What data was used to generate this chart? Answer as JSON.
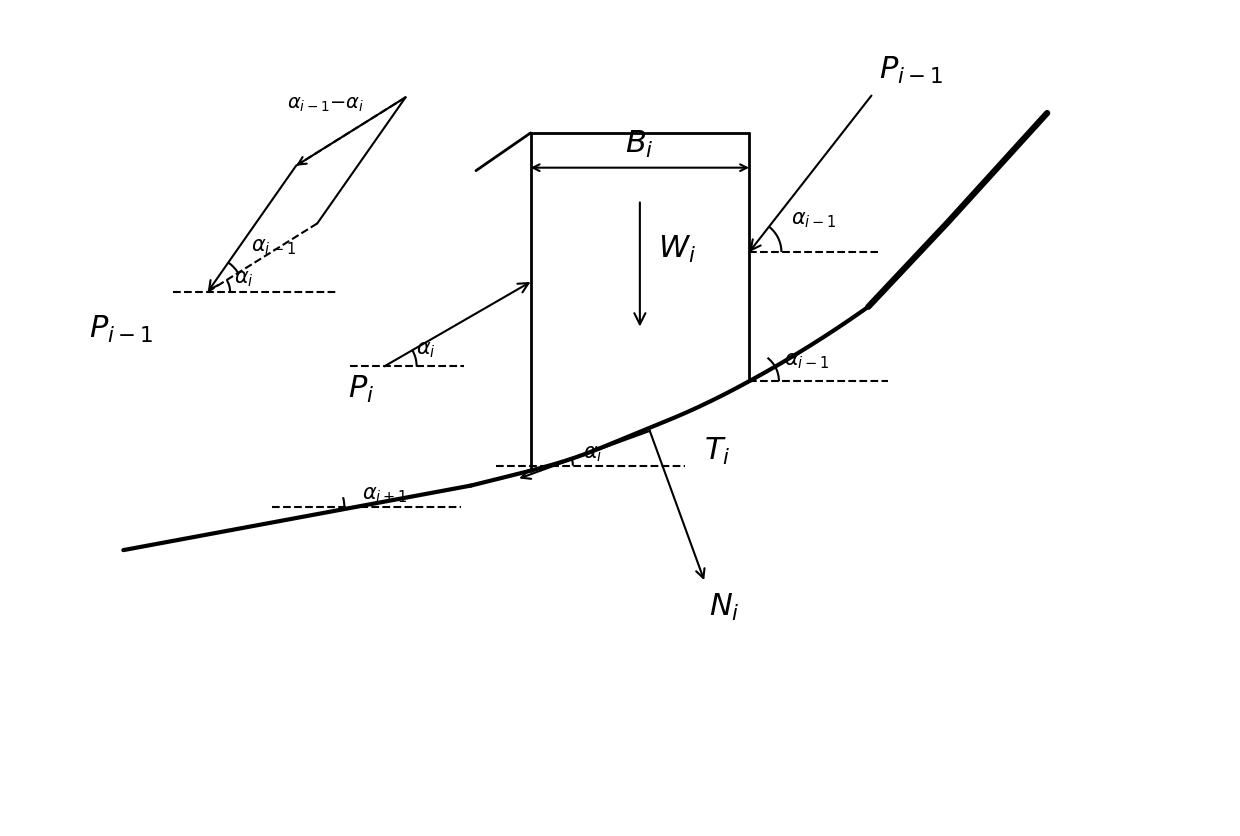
{
  "bg_color": "#ffffff",
  "line_color": "#000000",
  "lw_thick": 3.0,
  "lw_medium": 2.0,
  "lw_thin": 1.5,
  "lw_dashed": 1.5,
  "fontsize_large": 22,
  "fontsize_mid": 17,
  "fontsize_small": 15,
  "figsize": [
    12.4,
    8.36
  ],
  "dpi": 100
}
